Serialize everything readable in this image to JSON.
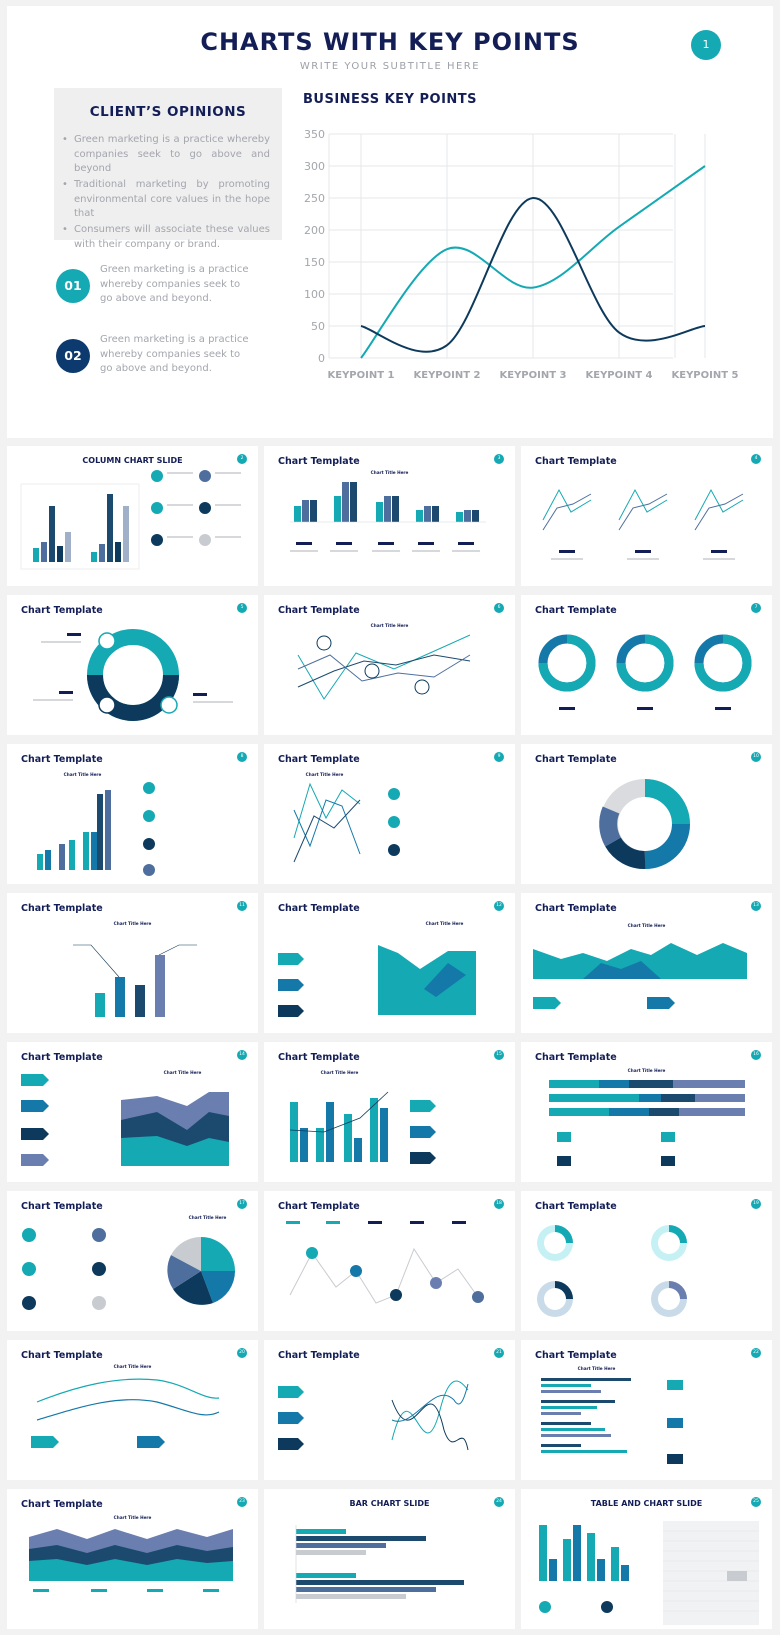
{
  "header": {
    "title": "CHARTS WITH KEY POINTS",
    "subtitle": "WRITE YOUR SUBTITLE HERE",
    "page_number": "1"
  },
  "opinions": {
    "title": "CLIENT’S OPINIONS",
    "bullets": [
      "Green marketing is a practice whereby companies seek to go above and beyond",
      "Traditional marketing by promoting environmental core values in the hope that",
      "Consumers will associate these values with their company or brand."
    ]
  },
  "key_points": [
    {
      "number": "01",
      "text": "Green marketing is a practice whereby companies seek to go above and beyond."
    },
    {
      "number": "02",
      "text": "Green marketing is a practice whereby companies seek to go above and beyond."
    }
  ],
  "business": {
    "title": "BUSINESS KEY POINTS"
  },
  "chart_data": {
    "type": "line",
    "title": "BUSINESS KEY POINTS",
    "categories": [
      "KEYPOINT 1",
      "KEYPOINT 2",
      "KEYPOINT 3",
      "KEYPOINT 4",
      "KEYPOINT 5"
    ],
    "ylim": [
      0,
      350
    ],
    "yticks": [
      "0",
      "50",
      "100",
      "150",
      "200",
      "250",
      "300",
      "350"
    ],
    "grid": true,
    "series": [
      {
        "color": "#14a9b3",
        "values": [
          0,
          170,
          110,
          205,
          300
        ]
      },
      {
        "color": "#0d3a5c",
        "values": [
          50,
          20,
          250,
          40,
          50
        ]
      }
    ]
  },
  "thumbnails": {
    "column_slide_title": "COLUMN CHART SLIDE",
    "chart_template_title": "Chart Template",
    "chart_title_here": "Chart Title Here",
    "bar_slide_title": "BAR CHART SLIDE",
    "table_slide_title": "TABLE AND CHART SLIDE",
    "badges": [
      "2",
      "3",
      "4",
      "5",
      "6",
      "7",
      "8",
      "9",
      "10",
      "11",
      "12",
      "13",
      "14",
      "15",
      "16",
      "17",
      "18",
      "19",
      "20",
      "21",
      "22",
      "23",
      "24",
      "25"
    ]
  },
  "colors": {
    "teal": "#14a9b3",
    "navy": "#131e56",
    "dark_blue": "#0d3a5c",
    "muted_text": "#a3a6ad",
    "slate": "#6a7fb0"
  }
}
